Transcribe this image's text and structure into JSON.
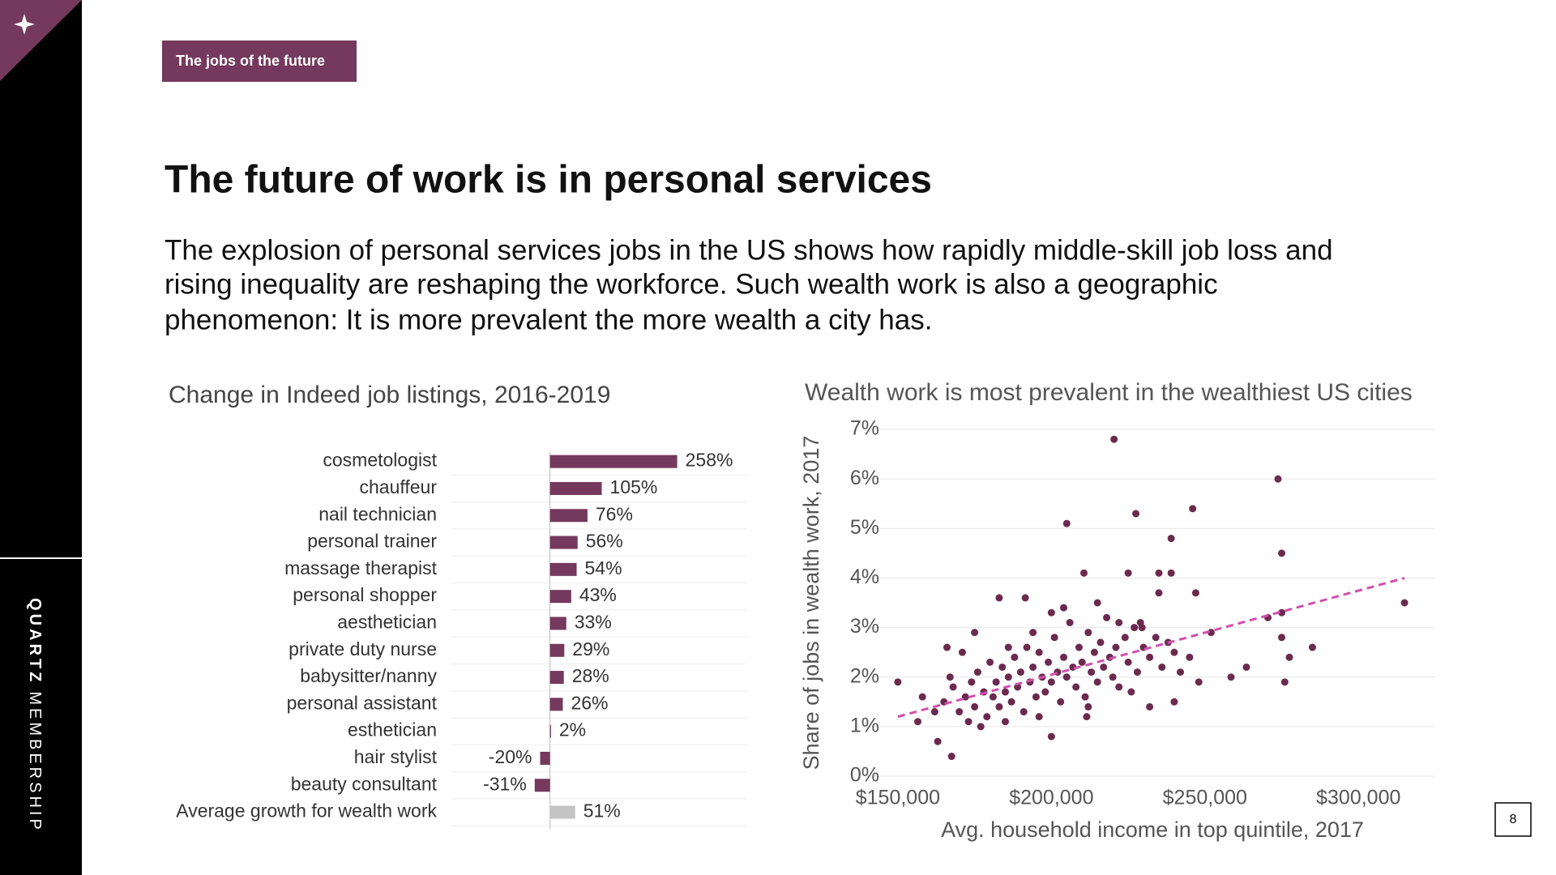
{
  "tag": "The jobs of the future",
  "title": "The future of work is in personal services",
  "body": [
    "The explosion of personal services jobs in the US shows how rapidly middle-skill job loss and",
    "rising inequality are reshaping the workforce. Such wealth work is also a geographic",
    "phenomenon: It is more prevalent the more wealth a city has."
  ],
  "sidebar": {
    "brand": "QUARTZ",
    "product": "MEMBERSHIP"
  },
  "page_number": "8",
  "chart_data": [
    {
      "type": "hbar",
      "title": "Change in Indeed job listings, 2016-2019",
      "categories": [
        "cosmetologist",
        "chauffeur",
        "nail technician",
        "personal trainer",
        "massage therapist",
        "personal shopper",
        "aesthetician",
        "private duty nurse",
        "babysitter/nanny",
        "personal assistant",
        "esthetician",
        "hair stylist",
        "beauty consultant",
        "Average growth for wealth work"
      ],
      "values": [
        258,
        105,
        76,
        56,
        54,
        43,
        33,
        29,
        28,
        26,
        2,
        -20,
        -31,
        51
      ],
      "value_labels": [
        "258%",
        "105%",
        "76%",
        "56%",
        "54%",
        "43%",
        "33%",
        "29%",
        "28%",
        "26%",
        "2%",
        "-20%",
        "-31%",
        "51%"
      ],
      "colors": [
        "#74395c",
        "#74395c",
        "#74395c",
        "#74395c",
        "#74395c",
        "#74395c",
        "#74395c",
        "#74395c",
        "#74395c",
        "#74395c",
        "#74395c",
        "#74395c",
        "#74395c",
        "#c4c4c4"
      ],
      "xlim": [
        -200,
        400
      ]
    },
    {
      "type": "scatter",
      "title": "Wealth work is most prevalent in the wealthiest US cities",
      "xlabel": "Avg. household income in top quintile, 2017",
      "ylabel": "Share of jobs in wealth work, 2017",
      "color": "#6b2a4e",
      "xlim": [
        140000,
        325000
      ],
      "ylim": [
        0,
        7
      ],
      "xticks": [
        {
          "value": 150000,
          "label": "$150,000"
        },
        {
          "value": 200000,
          "label": "$200,000"
        },
        {
          "value": 250000,
          "label": "$250,000"
        },
        {
          "value": 300000,
          "label": "$300,000"
        }
      ],
      "yticks": [
        {
          "value": 0,
          "label": "0%"
        },
        {
          "value": 1,
          "label": "1%"
        },
        {
          "value": 2,
          "label": "2%"
        },
        {
          "value": 3,
          "label": "3%"
        },
        {
          "value": 4,
          "label": "4%"
        },
        {
          "value": 5,
          "label": "5%"
        },
        {
          "value": 6,
          "label": "6%"
        },
        {
          "value": 7,
          "label": "7%"
        }
      ],
      "grid": true,
      "x": [
        220400,
        273800,
        205000,
        227500,
        246000,
        239000,
        275000,
        210600,
        225000,
        239000,
        247000,
        315000,
        285000,
        276000,
        277500,
        258500,
        263500,
        275000,
        270500,
        275000,
        252000,
        240000,
        232000,
        150000,
        156500,
        167500,
        163000,
        200000,
        211500,
        183000,
        191500,
        175000,
        166000,
        229500,
        235000,
        165000,
        168000,
        170000,
        172000,
        174000,
        175000,
        176000,
        178000,
        179000,
        180000,
        181000,
        182000,
        183000,
        184000,
        185000,
        186000,
        187000,
        188000,
        189000,
        190000,
        191000,
        192000,
        193000,
        194000,
        195000,
        196000,
        197000,
        198000,
        199000,
        200000,
        201000,
        202000,
        203000,
        204000,
        205000,
        206000,
        207000,
        208000,
        209000,
        210000,
        211000,
        212000,
        213000,
        214000,
        215000,
        216000,
        217000,
        218000,
        219000,
        220000,
        221000,
        222000,
        224000,
        225000,
        227000,
        228000,
        230000,
        232000,
        234000,
        236000,
        238000,
        240000,
        242000,
        245000,
        248000,
        171000,
        177000,
        185000,
        194000,
        200000,
        162000,
        158000,
        167000,
        173000,
        196000,
        212000,
        226000,
        204000,
        215000,
        229000,
        186000,
        235000,
        222000
      ],
      "y": [
        6.8,
        6.0,
        5.1,
        5.3,
        5.4,
        4.8,
        4.5,
        4.1,
        4.1,
        4.1,
        3.7,
        3.5,
        2.6,
        1.9,
        2.4,
        2.0,
        2.2,
        3.3,
        3.2,
        2.8,
        2.9,
        1.5,
        1.4,
        1.9,
        1.1,
        0.4,
        0.7,
        0.8,
        1.2,
        3.6,
        3.6,
        2.9,
        2.6,
        3.0,
        4.1,
        1.5,
        1.8,
        1.3,
        1.6,
        1.9,
        1.4,
        2.1,
        1.7,
        1.2,
        2.3,
        1.6,
        1.9,
        1.4,
        2.2,
        1.7,
        2.0,
        1.5,
        2.4,
        1.8,
        2.1,
        1.3,
        2.6,
        1.9,
        2.2,
        1.6,
        2.5,
        2.0,
        1.7,
        2.3,
        1.9,
        2.8,
        2.1,
        1.5,
        2.4,
        2.0,
        3.1,
        2.2,
        1.8,
        2.6,
        2.3,
        1.6,
        2.9,
        2.1,
        2.5,
        1.9,
        2.7,
        2.2,
        3.2,
        2.4,
        2.0,
        2.6,
        1.8,
        2.8,
        2.3,
        3.0,
        2.1,
        2.6,
        2.4,
        2.8,
        2.2,
        2.7,
        2.5,
        2.1,
        2.4,
        1.9,
        2.5,
        1.0,
        1.1,
        2.9,
        3.3,
        1.3,
        1.6,
        2.0,
        1.1,
        1.2,
        1.4,
        1.7,
        3.4,
        3.5,
        3.1,
        2.6,
        3.7,
        3.1
      ],
      "trendline": {
        "color": "#d24fae",
        "x": [
          150000,
          315000
        ],
        "y": [
          1.2,
          4.0
        ]
      }
    }
  ]
}
